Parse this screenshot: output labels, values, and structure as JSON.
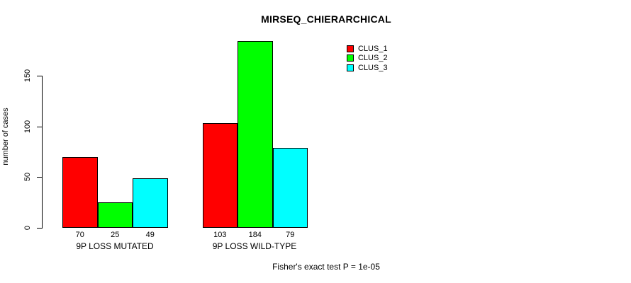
{
  "title": "MIRSEQ_CHIERARCHICAL",
  "ylabel": "number of cases",
  "footer": "Fisher's exact test P = 1e-05",
  "legend": {
    "items": [
      {
        "label": "CLUS_1",
        "color": "#ff0000"
      },
      {
        "label": "CLUS_2",
        "color": "#00ff00"
      },
      {
        "label": "CLUS_3",
        "color": "#00ffff"
      }
    ]
  },
  "chart_data": {
    "type": "bar",
    "title": "MIRSEQ_CHIERARCHICAL",
    "xlabel": "",
    "ylabel": "number of cases",
    "categories": [
      "9P LOSS MUTATED",
      "9P LOSS WILD-TYPE"
    ],
    "series": [
      {
        "name": "CLUS_1",
        "color": "#ff0000",
        "values": [
          70,
          103
        ]
      },
      {
        "name": "CLUS_2",
        "color": "#00ff00",
        "values": [
          25,
          184
        ]
      },
      {
        "name": "CLUS_3",
        "color": "#00ffff",
        "values": [
          49,
          79
        ]
      }
    ],
    "bar_labels": [
      [
        70,
        25,
        49
      ],
      [
        103,
        184,
        79
      ]
    ],
    "yticks": [
      0,
      50,
      100,
      150
    ],
    "ylim": [
      0,
      184
    ],
    "grid": false,
    "legend_position": "top-right",
    "bar_border_color": "#000000",
    "annotation": "Fisher's exact test P = 1e-05"
  }
}
